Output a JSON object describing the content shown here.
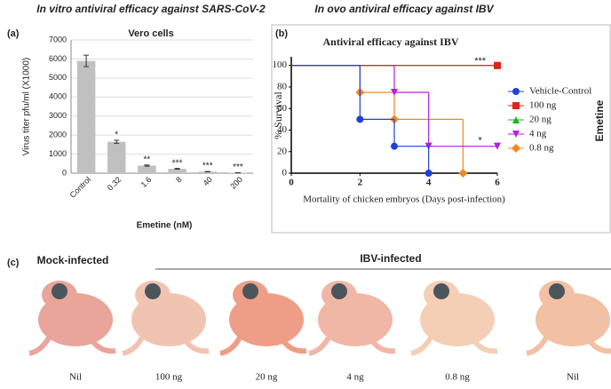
{
  "panel_labels": [
    "(a)",
    "(b)",
    "(c)"
  ],
  "chart_data": [
    {
      "type": "bar",
      "heading": "In vitro antiviral efficacy against SARS-CoV-2",
      "title": "Vero cells",
      "x_label": "Emetine (nM)",
      "y_label": "Virus titer pfu/ml (X1000)",
      "categories": [
        "Control",
        "0.32",
        "1.6",
        "8",
        "40",
        "200"
      ],
      "values": [
        5900,
        1650,
        400,
        230,
        80,
        20
      ],
      "errors": [
        300,
        80,
        30,
        20,
        10,
        5
      ],
      "annotations": [
        null,
        "*",
        "**",
        "***",
        "***",
        "***"
      ],
      "color": "#c0c0c0",
      "ylim": [
        0,
        7000
      ],
      "yticks": [
        0,
        1000,
        2000,
        3000,
        4000,
        5000,
        6000,
        7000
      ],
      "grid": true
    },
    {
      "type": "step",
      "heading": "In ovo antiviral efficacy against IBV",
      "title": "Antiviral efficacy against IBV",
      "x_label": "Mortality of chicken embryos (Days post-infection)",
      "y_label": "% Survival",
      "legend_title": "Emetine",
      "xlim": [
        0,
        6
      ],
      "xticks": [
        0,
        2,
        4,
        6
      ],
      "ylim": [
        0,
        108
      ],
      "yticks": [
        0,
        20,
        40,
        60,
        80,
        100
      ],
      "series": [
        {
          "name": "Vehicle-Control",
          "color": "#1f3fdc",
          "marker": "circle",
          "x": [
            0,
            2,
            3,
            4
          ],
          "values": [
            100,
            50,
            25,
            0
          ]
        },
        {
          "name": "100 ng",
          "color": "#e8201a",
          "marker": "square",
          "x": [
            0,
            6
          ],
          "values": [
            100,
            100
          ]
        },
        {
          "name": "20 ng",
          "color": "#17b31a",
          "marker": "triangle",
          "x": [
            0,
            6
          ],
          "values": [
            100,
            100
          ]
        },
        {
          "name": "4 ng",
          "color": "#b41ee0",
          "marker": "triangle-down",
          "x": [
            0,
            3,
            4,
            6
          ],
          "values": [
            100,
            75,
            25,
            25
          ]
        },
        {
          "name": "0.8 ng",
          "color": "#f5861f",
          "marker": "diamond",
          "x": [
            0,
            2,
            3,
            5
          ],
          "values": [
            100,
            75,
            50,
            0
          ]
        }
      ],
      "annotations": [
        {
          "text": "***",
          "x": 5.5,
          "y": 104
        },
        {
          "text": "*",
          "x": 5.5,
          "y": 30
        }
      ]
    }
  ],
  "photo_panel": {
    "group_labels": [
      "Mock-infected",
      "IBV-infected"
    ],
    "captions": [
      "Nil",
      "100 ng",
      "20 ng",
      "4 ng",
      "0.8 ng",
      "Nil"
    ]
  }
}
